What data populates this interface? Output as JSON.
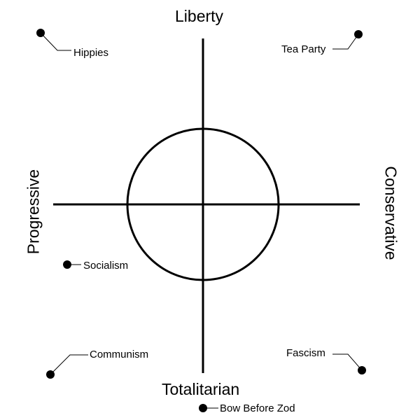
{
  "axes": {
    "top": "Liberty",
    "bottom": "Totalitarian",
    "left": "Progressive",
    "right": "Conservative"
  },
  "points": [
    {
      "id": "hippies",
      "label": "Hippies"
    },
    {
      "id": "tea-party",
      "label": "Tea Party"
    },
    {
      "id": "socialism",
      "label": "Socialism"
    },
    {
      "id": "communism",
      "label": "Communism"
    },
    {
      "id": "fascism",
      "label": "Fascism"
    },
    {
      "id": "bow-before-zod",
      "label": "Bow Before Zod"
    }
  ],
  "colors": {
    "ink": "#000000",
    "background": "#ffffff"
  }
}
